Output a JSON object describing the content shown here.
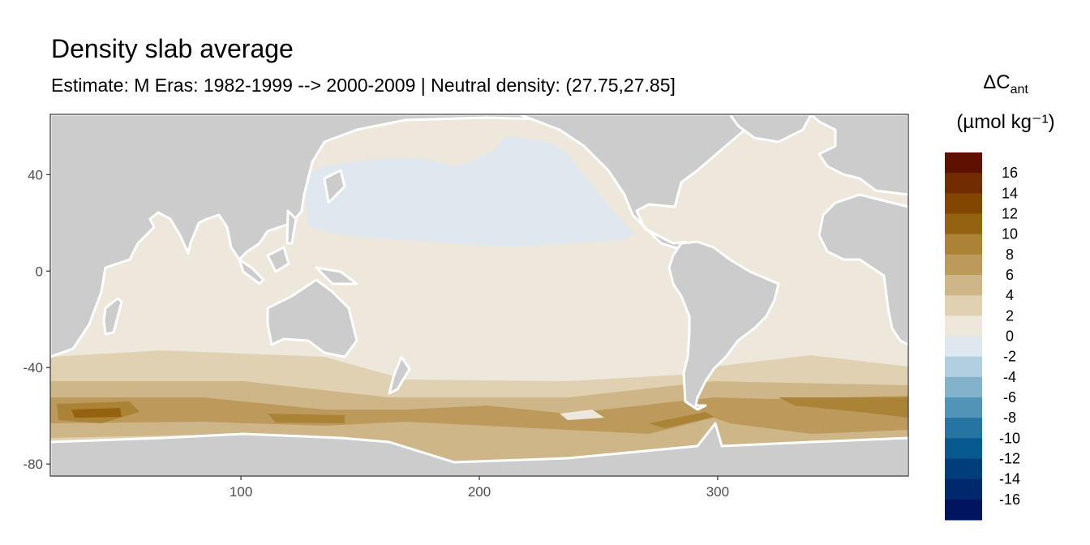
{
  "title": "Density slab average",
  "subtitle": "Estimate: M Eras: 1982-1999 --> 2000-2009 | Neutral density: (27.75,27.85]",
  "legend": {
    "title_main": "ΔC",
    "title_sub": "ant",
    "units": "(µmol kg⁻¹)",
    "labels": [
      "16",
      "14",
      "12",
      "10",
      "8",
      "6",
      "4",
      "2",
      "0",
      "-2",
      "-4",
      "-6",
      "-8",
      "-10",
      "-12",
      "-14",
      "-16"
    ],
    "colors": [
      "#5F1100",
      "#722C00",
      "#834600",
      "#95620F",
      "#AB8337",
      "#BC9A5C",
      "#CEB688",
      "#E0D1B2",
      "#EDE7DC",
      "#DEE8EE",
      "#B2CFE0",
      "#83B2CB",
      "#5293B8",
      "#2574A1",
      "#075A90",
      "#003E7B",
      "#00296C",
      "#001460"
    ]
  },
  "map": {
    "type": "heatmap",
    "xlim": [
      20,
      380
    ],
    "ylim": [
      -85,
      65
    ],
    "x_ticks": [
      100,
      200,
      300
    ],
    "y_ticks": [
      40,
      0,
      -40,
      -80
    ],
    "land_color": "#CCCCCC",
    "no_data_color": "#FFFFFF"
  }
}
